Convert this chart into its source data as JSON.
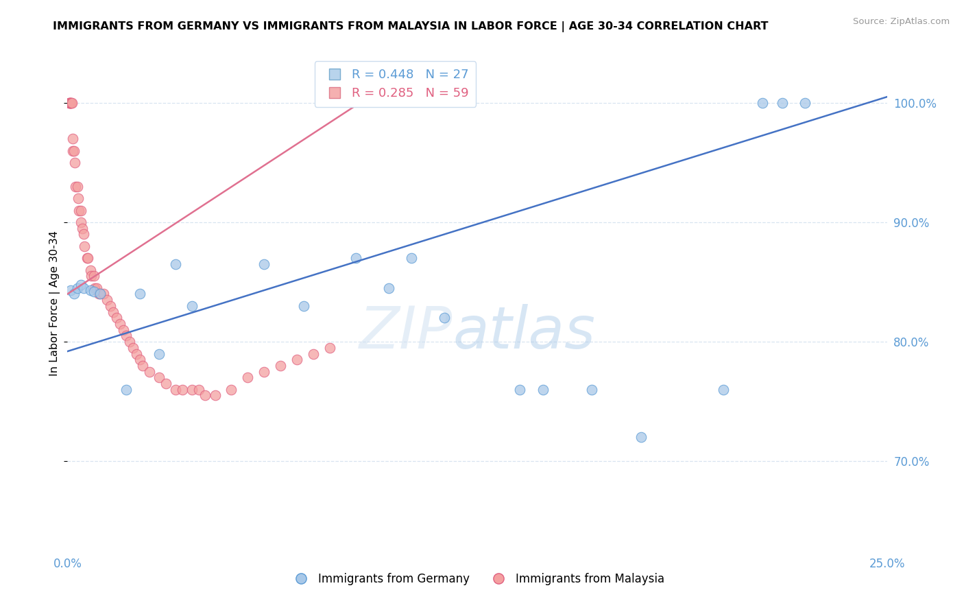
{
  "title": "IMMIGRANTS FROM GERMANY VS IMMIGRANTS FROM MALAYSIA IN LABOR FORCE | AGE 30-34 CORRELATION CHART",
  "source": "Source: ZipAtlas.com",
  "ylabel": "In Labor Force | Age 30-34",
  "xlim": [
    0.0,
    0.25
  ],
  "ylim": [
    0.625,
    1.04
  ],
  "yticks": [
    0.7,
    0.8,
    0.9,
    1.0
  ],
  "ytick_labels": [
    "70.0%",
    "80.0%",
    "90.0%",
    "100.0%"
  ],
  "xtick_positions": [
    0.0,
    0.05,
    0.1,
    0.15,
    0.2,
    0.25
  ],
  "xtick_labels": [
    "0.0%",
    "",
    "",
    "",
    "",
    "25.0%"
  ],
  "legend_blue_label": "Immigrants from Germany",
  "legend_pink_label": "Immigrants from Malaysia",
  "R_blue": 0.448,
  "N_blue": 27,
  "R_pink": 0.285,
  "N_pink": 59,
  "blue_scatter_color": "#a8c8e8",
  "blue_edge_color": "#5b9bd5",
  "pink_scatter_color": "#f4a0a0",
  "pink_edge_color": "#e06080",
  "blue_line_color": "#4472c4",
  "pink_line_color": "#e07090",
  "watermark_color": "#dce8f5",
  "grid_color": "#d8e4f0",
  "tick_color": "#5b9bd5",
  "blue_x": [
    0.001,
    0.002,
    0.003,
    0.004,
    0.005,
    0.007,
    0.008,
    0.01,
    0.018,
    0.022,
    0.028,
    0.033,
    0.038,
    0.06,
    0.072,
    0.088,
    0.098,
    0.105,
    0.115,
    0.138,
    0.145,
    0.16,
    0.175,
    0.2,
    0.212,
    0.218,
    0.225
  ],
  "blue_y": [
    0.843,
    0.84,
    0.845,
    0.848,
    0.845,
    0.843,
    0.842,
    0.84,
    0.76,
    0.84,
    0.79,
    0.865,
    0.83,
    0.865,
    0.83,
    0.87,
    0.845,
    0.87,
    0.82,
    0.76,
    0.76,
    0.76,
    0.72,
    0.76,
    1.0,
    1.0,
    1.0
  ],
  "pink_x": [
    0.0005,
    0.0006,
    0.0007,
    0.0008,
    0.0009,
    0.001,
    0.0012,
    0.0014,
    0.0015,
    0.0016,
    0.002,
    0.0022,
    0.0025,
    0.003,
    0.0032,
    0.0035,
    0.004,
    0.0042,
    0.0045,
    0.005,
    0.0052,
    0.006,
    0.0062,
    0.007,
    0.0072,
    0.008,
    0.0082,
    0.009,
    0.0095,
    0.01,
    0.011,
    0.012,
    0.013,
    0.014,
    0.015,
    0.016,
    0.017,
    0.018,
    0.019,
    0.02,
    0.021,
    0.022,
    0.023,
    0.025,
    0.028,
    0.03,
    0.033,
    0.035,
    0.038,
    0.04,
    0.042,
    0.045,
    0.05,
    0.055,
    0.06,
    0.065,
    0.07,
    0.075,
    0.08
  ],
  "pink_y": [
    1.0,
    1.0,
    1.0,
    1.0,
    1.0,
    1.0,
    1.0,
    1.0,
    0.97,
    0.96,
    0.96,
    0.95,
    0.93,
    0.93,
    0.92,
    0.91,
    0.91,
    0.9,
    0.895,
    0.89,
    0.88,
    0.87,
    0.87,
    0.86,
    0.855,
    0.855,
    0.845,
    0.845,
    0.84,
    0.84,
    0.84,
    0.835,
    0.83,
    0.825,
    0.82,
    0.815,
    0.81,
    0.805,
    0.8,
    0.795,
    0.79,
    0.785,
    0.78,
    0.775,
    0.77,
    0.765,
    0.76,
    0.76,
    0.76,
    0.76,
    0.755,
    0.755,
    0.76,
    0.77,
    0.775,
    0.78,
    0.785,
    0.79,
    0.795
  ],
  "blue_line_x0": 0.0,
  "blue_line_y0": 0.792,
  "blue_line_x1": 0.25,
  "blue_line_y1": 1.005,
  "pink_line_x0": 0.0,
  "pink_line_y0": 0.84,
  "pink_line_x1": 0.092,
  "pink_line_y1": 1.005
}
